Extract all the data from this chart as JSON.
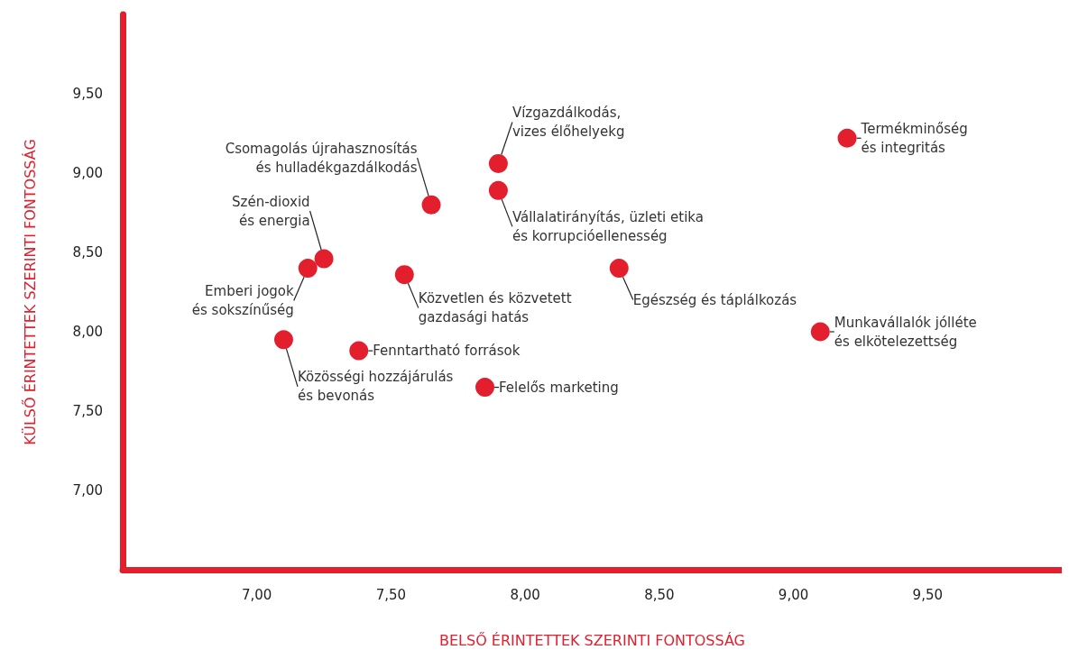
{
  "chart_data": {
    "type": "scatter",
    "xlabel": "BELSŐ ÉRINTETTEK SZERINTI FONTOSSÁG",
    "ylabel": "KÜLSŐ ÉRINTETTEK SZERINTI FONTOSSÁG",
    "x": [
      9.2,
      9.1,
      7.9,
      7.9,
      7.65,
      7.25,
      7.19,
      7.55,
      8.35,
      7.1,
      7.38,
      7.85
    ],
    "series": [
      {
        "color": "#e31e2d",
        "values": [
          9.22,
          8.0,
          9.06,
          8.89,
          8.8,
          8.46,
          8.4,
          8.36,
          8.4,
          7.95,
          7.88,
          7.65
        ]
      }
    ],
    "annotations": [
      {
        "text": "Termékminőség\nés integritás",
        "x": 9.2,
        "y": 9.22
      },
      {
        "text": "Munkavállalók jólléte\nés elkötelezettség",
        "x": 9.1,
        "y": 8.0
      },
      {
        "text": "Vízgazdálkodás,\nvizes élőhelyekg",
        "x": 7.9,
        "y": 9.06
      },
      {
        "text": "Vállalatirányítás, üzleti etika\nés korrupcióellenesség",
        "x": 7.9,
        "y": 8.89
      },
      {
        "text": "Csomagolás újrahasznosítás\nés hulladékgazdálkodás",
        "x": 7.65,
        "y": 8.8
      },
      {
        "text": "Szén-dioxid\nés energia",
        "x": 7.25,
        "y": 8.46
      },
      {
        "text": "Emberi jogok\nés sokszínűség",
        "x": 7.19,
        "y": 8.4
      },
      {
        "text": "Közvetlen és közvetett\ngazdasági hatás",
        "x": 7.55,
        "y": 8.36
      },
      {
        "text": "Egészség és táplálkozás",
        "x": 8.35,
        "y": 8.4
      },
      {
        "text": "Közösségi hozzájárulás\nés bevonás",
        "x": 7.1,
        "y": 7.95
      },
      {
        "text": "Fenntartható források",
        "x": 7.38,
        "y": 7.88
      },
      {
        "text": "Felelős marketing",
        "x": 7.85,
        "y": 7.65
      }
    ],
    "xlim": [
      6.5,
      10
    ],
    "ylim": [
      6.5,
      10
    ],
    "xticks": [
      {
        "value": 7,
        "label": "7,00"
      },
      {
        "value": 7.5,
        "label": "7,50"
      },
      {
        "value": 8,
        "label": "8,00"
      },
      {
        "value": 8.5,
        "label": "8,50"
      },
      {
        "value": 9,
        "label": "9,00"
      },
      {
        "value": 9.5,
        "label": "9,50"
      }
    ],
    "yticks": [
      {
        "value": 7,
        "label": "7,00"
      },
      {
        "value": 7.5,
        "label": "7,50"
      },
      {
        "value": 8,
        "label": "8,00"
      },
      {
        "value": 8.5,
        "label": "8,50"
      },
      {
        "value": 9,
        "label": "9,00"
      },
      {
        "value": 9.5,
        "label": "9,50"
      }
    ],
    "grid": false,
    "marker": "circle"
  }
}
